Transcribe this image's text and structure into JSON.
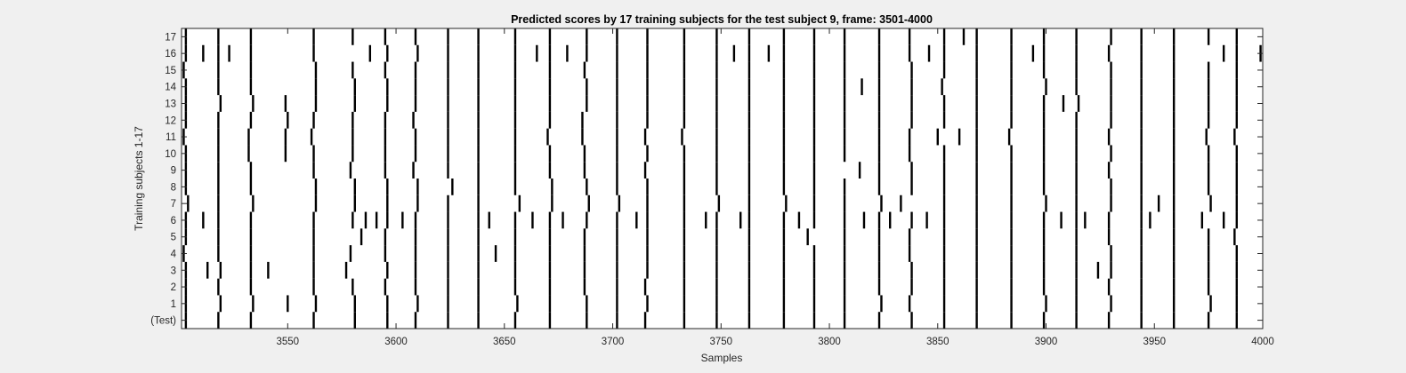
{
  "chart_data": {
    "type": "heatmap",
    "title": "Predicted scores by 17 training subjects for the test subject 9, frame: 3501-4000",
    "xlabel": "Samples",
    "ylabel": "Training subjects 1-17",
    "xlim": [
      3501,
      4000
    ],
    "xticks": [
      3550,
      3600,
      3650,
      3700,
      3750,
      3800,
      3850,
      3900,
      3950,
      4000
    ],
    "yticks": [
      "(Test)",
      "1",
      "2",
      "3",
      "4",
      "5",
      "6",
      "7",
      "8",
      "9",
      "10",
      "11",
      "12",
      "13",
      "14",
      "15",
      "16",
      "17"
    ],
    "mark_color": "#000000",
    "background_color": "#ffffff",
    "rows": [
      {
        "label": "(Test)",
        "events": [
          3503,
          3518,
          3533,
          3562,
          3581,
          3596,
          3609,
          3624,
          3638,
          3655,
          3671,
          3688,
          3702,
          3715,
          3733,
          3748,
          3763,
          3779,
          3793,
          3807,
          3823,
          3838,
          3853,
          3868,
          3884,
          3899,
          3914,
          3929,
          3944,
          3959,
          3975,
          3988
        ]
      },
      {
        "label": "1",
        "events": [
          3503,
          3519,
          3534,
          3550,
          3563,
          3581,
          3596,
          3610,
          3624,
          3638,
          3656,
          3671,
          3688,
          3702,
          3716,
          3733,
          3748,
          3763,
          3779,
          3793,
          3807,
          3824,
          3837,
          3853,
          3868,
          3884,
          3900,
          3914,
          3930,
          3944,
          3959,
          3976,
          3988
        ]
      },
      {
        "label": "2",
        "events": [
          3503,
          3518,
          3533,
          3562,
          3580,
          3595,
          3609,
          3624,
          3638,
          3655,
          3671,
          3687,
          3702,
          3715,
          3733,
          3748,
          3763,
          3779,
          3793,
          3807,
          3823,
          3838,
          3853,
          3868,
          3884,
          3899,
          3914,
          3929,
          3944,
          3959,
          3975,
          3988
        ]
      },
      {
        "label": "3",
        "events": [
          3503,
          3513,
          3519,
          3533,
          3541,
          3562,
          3577,
          3596,
          3609,
          3624,
          3638,
          3655,
          3671,
          3687,
          3702,
          3716,
          3733,
          3748,
          3763,
          3779,
          3793,
          3807,
          3823,
          3838,
          3853,
          3868,
          3884,
          3899,
          3914,
          3924,
          3930,
          3944,
          3959,
          3975,
          3988
        ]
      },
      {
        "label": "4",
        "events": [
          3502,
          3518,
          3533,
          3562,
          3579,
          3595,
          3609,
          3624,
          3638,
          3646,
          3655,
          3671,
          3687,
          3702,
          3716,
          3733,
          3748,
          3763,
          3779,
          3793,
          3807,
          3823,
          3837,
          3853,
          3868,
          3884,
          3899,
          3914,
          3930,
          3944,
          3959,
          3975,
          3988
        ]
      },
      {
        "label": "5",
        "events": [
          3503,
          3518,
          3533,
          3562,
          3584,
          3595,
          3609,
          3624,
          3638,
          3655,
          3671,
          3687,
          3702,
          3716,
          3733,
          3748,
          3763,
          3779,
          3790,
          3807,
          3823,
          3837,
          3853,
          3868,
          3884,
          3899,
          3914,
          3929,
          3944,
          3959,
          3975,
          3987
        ]
      },
      {
        "label": "6",
        "events": [
          3503,
          3511,
          3518,
          3533,
          3562,
          3580,
          3586,
          3591,
          3596,
          3603,
          3609,
          3624,
          3638,
          3643,
          3655,
          3663,
          3671,
          3677,
          3688,
          3702,
          3711,
          3716,
          3733,
          3743,
          3748,
          3759,
          3763,
          3779,
          3786,
          3793,
          3807,
          3816,
          3823,
          3828,
          3838,
          3845,
          3853,
          3868,
          3884,
          3899,
          3907,
          3914,
          3918,
          3929,
          3944,
          3948,
          3959,
          3972,
          3982,
          3988
        ]
      },
      {
        "label": "7",
        "events": [
          3504,
          3518,
          3534,
          3563,
          3581,
          3596,
          3610,
          3624,
          3638,
          3657,
          3672,
          3689,
          3703,
          3716,
          3733,
          3749,
          3763,
          3780,
          3793,
          3807,
          3824,
          3833,
          3853,
          3868,
          3884,
          3900,
          3914,
          3930,
          3944,
          3952,
          3959,
          3976,
          3988
        ]
      },
      {
        "label": "8",
        "events": [
          3503,
          3518,
          3533,
          3563,
          3581,
          3596,
          3610,
          3626,
          3638,
          3655,
          3672,
          3688,
          3702,
          3716,
          3733,
          3748,
          3763,
          3779,
          3793,
          3807,
          3823,
          3838,
          3853,
          3868,
          3884,
          3899,
          3914,
          3930,
          3944,
          3959,
          3975,
          3988
        ]
      },
      {
        "label": "9",
        "events": [
          3503,
          3518,
          3533,
          3562,
          3579,
          3595,
          3608,
          3624,
          3638,
          3655,
          3671,
          3687,
          3702,
          3715,
          3733,
          3748,
          3763,
          3779,
          3793,
          3814,
          3823,
          3838,
          3853,
          3868,
          3884,
          3899,
          3914,
          3929,
          3944,
          3959,
          3975,
          3988
        ]
      },
      {
        "label": "10",
        "events": [
          3503,
          3518,
          3532,
          3549,
          3562,
          3580,
          3595,
          3609,
          3624,
          3638,
          3655,
          3671,
          3687,
          3702,
          3716,
          3733,
          3748,
          3763,
          3779,
          3793,
          3807,
          3823,
          3837,
          3853,
          3868,
          3884,
          3899,
          3914,
          3930,
          3944,
          3959,
          3975,
          3988
        ]
      },
      {
        "label": "11",
        "events": [
          3502,
          3518,
          3532,
          3549,
          3561,
          3580,
          3595,
          3609,
          3624,
          3638,
          3655,
          3670,
          3686,
          3702,
          3715,
          3732,
          3748,
          3763,
          3779,
          3793,
          3807,
          3823,
          3837,
          3850,
          3860,
          3868,
          3883,
          3899,
          3914,
          3929,
          3944,
          3959,
          3974,
          3987
        ]
      },
      {
        "label": "12",
        "events": [
          3503,
          3518,
          3533,
          3550,
          3562,
          3580,
          3595,
          3608,
          3624,
          3638,
          3655,
          3671,
          3686,
          3702,
          3716,
          3733,
          3748,
          3763,
          3779,
          3793,
          3807,
          3823,
          3838,
          3853,
          3868,
          3884,
          3899,
          3914,
          3930,
          3944,
          3959,
          3975,
          3988
        ]
      },
      {
        "label": "13",
        "events": [
          3503,
          3519,
          3534,
          3549,
          3563,
          3581,
          3596,
          3609,
          3624,
          3638,
          3655,
          3671,
          3688,
          3702,
          3716,
          3733,
          3748,
          3763,
          3779,
          3793,
          3807,
          3823,
          3838,
          3853,
          3868,
          3884,
          3899,
          3908,
          3915,
          3930,
          3944,
          3959,
          3975,
          3988
        ]
      },
      {
        "label": "14",
        "events": [
          3503,
          3518,
          3533,
          3563,
          3581,
          3596,
          3609,
          3624,
          3638,
          3655,
          3671,
          3688,
          3702,
          3716,
          3733,
          3748,
          3763,
          3779,
          3793,
          3807,
          3815,
          3823,
          3838,
          3852,
          3868,
          3884,
          3900,
          3914,
          3930,
          3944,
          3959,
          3975,
          3988
        ]
      },
      {
        "label": "15",
        "events": [
          3502,
          3518,
          3533,
          3563,
          3580,
          3595,
          3609,
          3624,
          3638,
          3655,
          3671,
          3687,
          3702,
          3716,
          3733,
          3748,
          3763,
          3779,
          3793,
          3807,
          3823,
          3838,
          3853,
          3868,
          3884,
          3899,
          3914,
          3930,
          3944,
          3959,
          3975,
          3988
        ]
      },
      {
        "label": "16",
        "events": [
          3503,
          3511,
          3518,
          3523,
          3533,
          3562,
          3588,
          3596,
          3610,
          3624,
          3638,
          3655,
          3665,
          3671,
          3679,
          3688,
          3702,
          3716,
          3733,
          3748,
          3756,
          3763,
          3772,
          3779,
          3793,
          3807,
          3823,
          3837,
          3846,
          3853,
          3868,
          3884,
          3894,
          3899,
          3914,
          3929,
          3944,
          3959,
          3982,
          3988,
          3999
        ]
      },
      {
        "label": "17",
        "events": [
          3503,
          3518,
          3533,
          3562,
          3580,
          3595,
          3609,
          3624,
          3638,
          3655,
          3671,
          3688,
          3702,
          3716,
          3733,
          3748,
          3763,
          3779,
          3793,
          3807,
          3823,
          3837,
          3853,
          3862,
          3868,
          3884,
          3899,
          3914,
          3930,
          3944,
          3959,
          3975,
          3988
        ]
      }
    ]
  }
}
